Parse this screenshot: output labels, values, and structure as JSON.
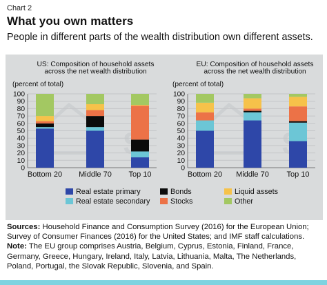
{
  "header": {
    "chart_label": "Chart 2",
    "title": "What you own matters",
    "subtitle": "People in different parts of the wealth distribution own different assets."
  },
  "colors": {
    "Real estate primary": "#2e47a8",
    "Real estate secondary": "#6cc6d6",
    "Bonds": "#0b0b0b",
    "Stocks": "#ec7247",
    "Liquid assets": "#f6c24a",
    "Other": "#a3c862",
    "panel_background": "#d9dbdc",
    "gridline": "#c4c6c8",
    "accent_bar": "#7ed3e0"
  },
  "chart_data": [
    {
      "type": "bar",
      "stacked": true,
      "title": "US: Composition of household assets across the net wealth distribution",
      "ylabel": "(percent of total)",
      "ylim": [
        0,
        100
      ],
      "yticks": [
        0,
        10,
        20,
        30,
        40,
        50,
        60,
        70,
        80,
        90,
        100
      ],
      "grid": true,
      "categories": [
        "Bottom 20",
        "Middle 70",
        "Top 10"
      ],
      "series": [
        {
          "name": "Real estate primary",
          "values": [
            53,
            50,
            14
          ]
        },
        {
          "name": "Real estate secondary",
          "values": [
            2,
            5,
            8
          ]
        },
        {
          "name": "Bonds",
          "values": [
            5,
            15,
            16
          ]
        },
        {
          "name": "Stocks",
          "values": [
            3,
            8,
            46
          ]
        },
        {
          "name": "Liquid assets",
          "values": [
            7,
            8,
            1
          ]
        },
        {
          "name": "Other",
          "values": [
            30,
            14,
            15
          ]
        }
      ]
    },
    {
      "type": "bar",
      "stacked": true,
      "title": "EU: Composition of household assets across the net wealth distribution",
      "ylabel": "(percent of total)",
      "ylim": [
        0,
        100
      ],
      "yticks": [
        0,
        10,
        20,
        30,
        40,
        50,
        60,
        70,
        80,
        90,
        100
      ],
      "grid": true,
      "categories": [
        "Bottom 20",
        "Middle 70",
        "Top 10"
      ],
      "series": [
        {
          "name": "Real estate primary",
          "values": [
            50,
            64,
            36
          ]
        },
        {
          "name": "Real estate secondary",
          "values": [
            14,
            11,
            25
          ]
        },
        {
          "name": "Bonds",
          "values": [
            0,
            2,
            2
          ]
        },
        {
          "name": "Stocks",
          "values": [
            11,
            3,
            20
          ]
        },
        {
          "name": "Liquid assets",
          "values": [
            13,
            14,
            13
          ]
        },
        {
          "name": "Other",
          "values": [
            12,
            6,
            4
          ]
        }
      ]
    }
  ],
  "legend": {
    "placement": "bottom",
    "items": [
      "Real estate primary",
      "Bonds",
      "Liquid assets",
      "Real estate secondary",
      "Stocks",
      "Other"
    ]
  },
  "sources": {
    "sources_label": "Sources:",
    "sources_text": "Household Finance and Consumption Survey (2016) for the European Union; Survey of Consumer Finances (2016) for the United States; and IMF staff calculations.",
    "note_label": "Note:",
    "note_text": "The EU group comprises Austria, Belgium, Cyprus, Estonia, Finland, France, Germany, Greece, Hungary, Ireland, Italy, Latvia, Lithuania, Malta, The Netherlands, Poland, Portugal, the Slovak Republic, Slovenia, and Spain."
  }
}
